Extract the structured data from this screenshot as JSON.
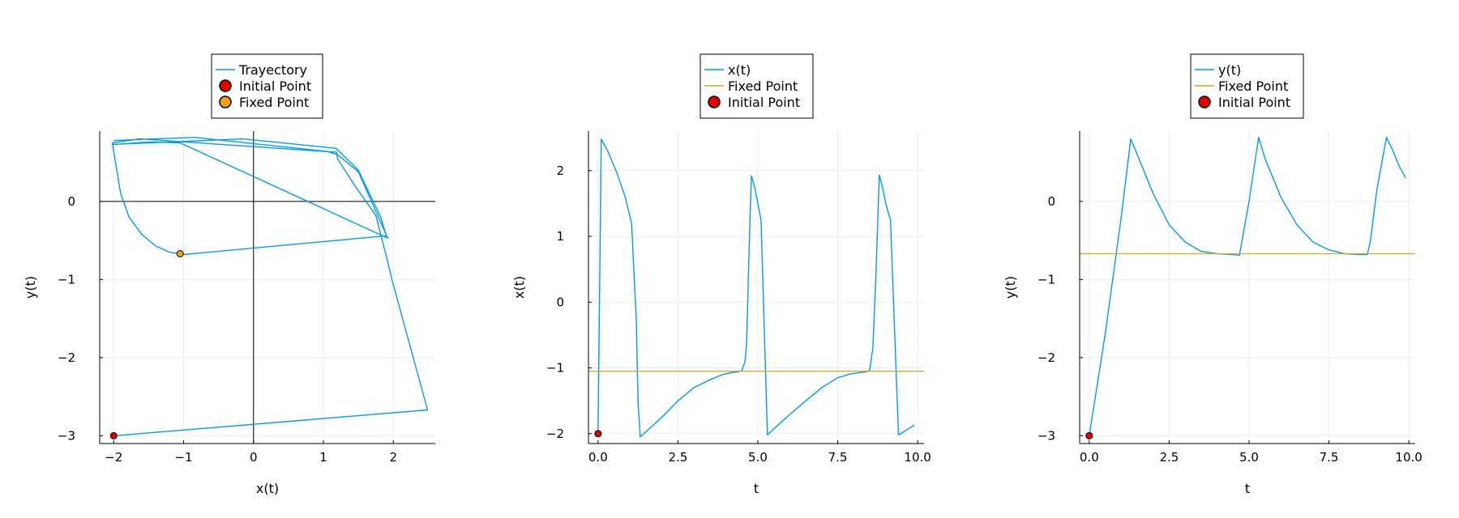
{
  "colors": {
    "trajectory": "#009AFA",
    "fixed_line": "#E3A21A",
    "initial_point": "#E00000",
    "fixed_point": "#F5A20F",
    "axis": "#000000",
    "grid": "#EBEBEB"
  },
  "chart_data": [
    {
      "type": "line",
      "xlabel": "x(t)",
      "ylabel": "y(t)",
      "xlim": [
        -2.2,
        2.6
      ],
      "ylim": [
        -3.1,
        0.9
      ],
      "xticks": [
        -2,
        -1,
        0,
        1,
        2
      ],
      "yticks": [
        -3,
        -2,
        -1,
        0
      ],
      "grid": true,
      "zero_lines": true,
      "legend_position": "top-center",
      "legend": [
        {
          "label": "Trayectory",
          "kind": "line",
          "color": "#009AFA"
        },
        {
          "label": "Initial Point",
          "kind": "marker",
          "color": "#E00000"
        },
        {
          "label": "Fixed Point",
          "kind": "marker",
          "color": "#F5A20F"
        }
      ],
      "series": [
        {
          "name": "Trayectory",
          "kind": "line",
          "color": "#009AFA",
          "x": [
            -2.0,
            2.49,
            1.98,
            1.9,
            1.75,
            1.45,
            1.2,
            1.19,
            -1.63,
            -2.02,
            -1.9,
            -1.78,
            -1.6,
            -1.4,
            -1.2,
            -1.0,
            1.9,
            1.82,
            1.7,
            1.5,
            1.25,
            1.18,
            -0.15,
            -2.02,
            -1.8,
            -1.6,
            -1.4,
            -1.2,
            -1.05,
            1.92,
            1.5,
            1.2,
            1.05,
            -0.84,
            -2.0
          ],
          "y": [
            -3.0,
            -2.67,
            -1.0,
            -0.7,
            -0.18,
            0.2,
            0.55,
            0.63,
            0.8,
            0.75,
            0.1,
            -0.2,
            -0.42,
            -0.57,
            -0.65,
            -0.68,
            -0.44,
            -0.2,
            0.02,
            0.4,
            0.62,
            0.68,
            0.8,
            0.73,
            0.74,
            0.755,
            0.76,
            0.755,
            0.75,
            -0.47,
            0.38,
            0.6,
            0.64,
            0.82,
            0.78
          ]
        },
        {
          "name": "Initial Point",
          "kind": "point",
          "color": "#E00000",
          "x": [
            -2.0
          ],
          "y": [
            -3.0
          ]
        },
        {
          "name": "Fixed Point",
          "kind": "point",
          "color": "#F5A20F",
          "x": [
            -1.05
          ],
          "y": [
            -0.67
          ]
        }
      ]
    },
    {
      "type": "line",
      "xlabel": "t",
      "ylabel": "x(t)",
      "xlim": [
        -0.3,
        10.2
      ],
      "ylim": [
        -2.15,
        2.6
      ],
      "xticks": [
        0.0,
        2.5,
        5.0,
        7.5,
        10.0
      ],
      "yticks": [
        -2,
        -1,
        0,
        1,
        2
      ],
      "grid": true,
      "legend_position": "top-center",
      "legend": [
        {
          "label": "x(t)",
          "kind": "line",
          "color": "#009AFA"
        },
        {
          "label": "Fixed Point",
          "kind": "line",
          "color": "#E3A21A"
        },
        {
          "label": "Initial Point",
          "kind": "marker",
          "color": "#E00000"
        }
      ],
      "series": [
        {
          "name": "x(t)",
          "kind": "line",
          "color": "#009AFA",
          "x": [
            0.0,
            0.1,
            0.3,
            0.6,
            0.85,
            1.05,
            1.2,
            1.25,
            1.32,
            1.5,
            2.0,
            2.5,
            3.0,
            3.5,
            3.9,
            4.2,
            4.4,
            4.5,
            4.6,
            4.65,
            4.7,
            4.75,
            4.8,
            4.9,
            5.0,
            5.1,
            5.3,
            5.45,
            5.9,
            6.5,
            7.0,
            7.5,
            7.9,
            8.2,
            8.4,
            8.5,
            8.6,
            8.7,
            8.8,
            8.9,
            9.0,
            9.15,
            9.4,
            9.9
          ],
          "y": [
            -2.0,
            2.48,
            2.3,
            1.95,
            1.6,
            1.2,
            -0.3,
            -1.5,
            -2.05,
            -1.97,
            -1.75,
            -1.5,
            -1.3,
            -1.18,
            -1.1,
            -1.07,
            -1.06,
            -1.04,
            -0.9,
            -0.6,
            0.3,
            1.2,
            1.92,
            1.75,
            1.5,
            1.25,
            -2.02,
            -1.95,
            -1.75,
            -1.5,
            -1.3,
            -1.15,
            -1.09,
            -1.07,
            -1.06,
            -1.03,
            -0.7,
            0.5,
            1.93,
            1.75,
            1.5,
            1.25,
            -2.02,
            -1.87
          ]
        },
        {
          "name": "Fixed Point",
          "kind": "hline",
          "color": "#E3A21A",
          "y": [
            -1.05
          ]
        },
        {
          "name": "Initial Point",
          "kind": "point",
          "color": "#E00000",
          "x": [
            0.0
          ],
          "y": [
            -2.0
          ]
        }
      ]
    },
    {
      "type": "line",
      "xlabel": "t",
      "ylabel": "y(t)",
      "xlim": [
        -0.3,
        10.2
      ],
      "ylim": [
        -3.1,
        0.9
      ],
      "xticks": [
        0.0,
        2.5,
        5.0,
        7.5,
        10.0
      ],
      "yticks": [
        -3,
        -2,
        -1,
        0
      ],
      "grid": true,
      "legend_position": "top-center",
      "legend": [
        {
          "label": "y(t)",
          "kind": "line",
          "color": "#009AFA"
        },
        {
          "label": "Fixed Point",
          "kind": "line",
          "color": "#E3A21A"
        },
        {
          "label": "Initial Point",
          "kind": "marker",
          "color": "#E00000"
        }
      ],
      "series": [
        {
          "name": "y(t)",
          "kind": "line",
          "color": "#009AFA",
          "x": [
            0.0,
            0.5,
            1.0,
            1.3,
            1.5,
            2.0,
            2.5,
            3.0,
            3.5,
            4.0,
            4.5,
            4.7,
            5.0,
            5.3,
            5.5,
            6.0,
            6.5,
            7.0,
            7.5,
            8.0,
            8.5,
            8.7,
            8.8,
            9.0,
            9.3,
            9.5,
            9.7,
            9.9
          ],
          "y": [
            -3.0,
            -1.7,
            -0.2,
            0.8,
            0.6,
            0.1,
            -0.3,
            -0.52,
            -0.64,
            -0.67,
            -0.68,
            -0.69,
            0.0,
            0.82,
            0.55,
            0.05,
            -0.3,
            -0.52,
            -0.62,
            -0.67,
            -0.68,
            -0.68,
            -0.5,
            0.15,
            0.82,
            0.65,
            0.45,
            0.3
          ]
        },
        {
          "name": "Fixed Point",
          "kind": "hline",
          "color": "#E3A21A",
          "y": [
            -0.67
          ]
        },
        {
          "name": "Initial Point",
          "kind": "point",
          "color": "#E00000",
          "x": [
            0.0
          ],
          "y": [
            -3.0
          ]
        }
      ]
    }
  ]
}
